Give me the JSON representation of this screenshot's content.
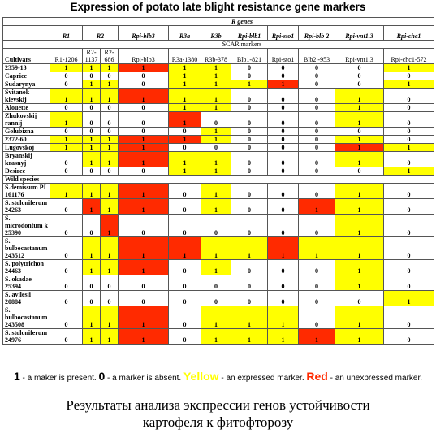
{
  "title": "Expression of potato late blight resistance gene markers",
  "table": {
    "group_header": "R genes",
    "genes": [
      "R1",
      "R2",
      "Rpi-blb3",
      "R3a",
      "R3b",
      "Rpi-blb1",
      "Rpi-sto1",
      "Rpi-blb 2",
      "Rpi-vnt1.3",
      "Rpi-chc1"
    ],
    "subheader": "SCAR markers",
    "corner": "Cultivars",
    "markers": [
      "R1-1206",
      "R2-1137",
      "R2-686",
      "Rpi-blb3",
      "R3a-1380",
      "R3b-378",
      "Blb1-821",
      "Rpi-sto1",
      "Blb2 -953",
      "Rpi-vnt1.3",
      "Rpi-chc1-572"
    ],
    "cultivars": [
      {
        "name": "2359-13",
        "values": [
          1,
          1,
          1,
          1,
          1,
          1,
          0,
          0,
          0,
          0,
          1
        ],
        "marks": [
          "y",
          "y",
          "y",
          "r",
          "y",
          "y",
          "n",
          "n",
          "n",
          "n",
          "y"
        ]
      },
      {
        "name": "Caprice",
        "values": [
          0,
          0,
          0,
          0,
          1,
          1,
          0,
          0,
          0,
          0,
          0
        ],
        "marks": [
          "n",
          "n",
          "n",
          "n",
          "y",
          "y",
          "n",
          "n",
          "n",
          "n",
          "n"
        ]
      },
      {
        "name": "Sudarynya",
        "values": [
          0,
          1,
          1,
          0,
          1,
          1,
          1,
          1,
          0,
          0,
          1
        ],
        "marks": [
          "n",
          "y",
          "y",
          "n",
          "y",
          "y",
          "y",
          "r",
          "n",
          "n",
          "y"
        ]
      },
      {
        "name": "Svitanok kievskij",
        "values": [
          1,
          1,
          1,
          1,
          1,
          1,
          0,
          0,
          0,
          1,
          0
        ],
        "marks": [
          "y",
          "y",
          "y",
          "r",
          "y",
          "y",
          "n",
          "n",
          "n",
          "y",
          "n"
        ]
      },
      {
        "name": "Alouette",
        "values": [
          0,
          0,
          0,
          0,
          1,
          1,
          0,
          0,
          0,
          1,
          0
        ],
        "marks": [
          "n",
          "n",
          "n",
          "n",
          "y",
          "y",
          "n",
          "n",
          "n",
          "y",
          "n"
        ]
      },
      {
        "name": "Zhukovskij rannij",
        "values": [
          1,
          0,
          0,
          0,
          1,
          0,
          0,
          0,
          0,
          1,
          0
        ],
        "marks": [
          "y",
          "n",
          "n",
          "n",
          "r",
          "n",
          "n",
          "n",
          "n",
          "y",
          "n"
        ]
      },
      {
        "name": "Golubizna",
        "values": [
          0,
          0,
          0,
          0,
          0,
          1,
          0,
          0,
          0,
          0,
          0
        ],
        "marks": [
          "n",
          "n",
          "n",
          "n",
          "n",
          "y",
          "n",
          "n",
          "n",
          "n",
          "n"
        ]
      },
      {
        "name": "2372-60",
        "values": [
          1,
          1,
          1,
          1,
          1,
          1,
          0,
          0,
          0,
          1,
          0
        ],
        "marks": [
          "y",
          "y",
          "y",
          "r",
          "r",
          "y",
          "n",
          "n",
          "n",
          "y",
          "n"
        ]
      },
      {
        "name": "Lugovskoj",
        "values": [
          1,
          1,
          1,
          1,
          0,
          0,
          0,
          0,
          0,
          1,
          1
        ],
        "marks": [
          "y",
          "y",
          "y",
          "r",
          "n",
          "n",
          "n",
          "n",
          "n",
          "r",
          "y"
        ]
      },
      {
        "name": "Bryanskij krasnyj",
        "values": [
          0,
          1,
          1,
          1,
          1,
          1,
          0,
          0,
          0,
          1,
          0
        ],
        "marks": [
          "n",
          "y",
          "y",
          "r",
          "y",
          "y",
          "n",
          "n",
          "n",
          "y",
          "n"
        ]
      },
      {
        "name": "Desiree",
        "values": [
          0,
          0,
          0,
          0,
          1,
          1,
          0,
          0,
          0,
          0,
          1
        ],
        "marks": [
          "n",
          "n",
          "n",
          "n",
          "y",
          "y",
          "n",
          "n",
          "n",
          "n",
          "y"
        ]
      }
    ],
    "wild_header": "Wild species",
    "wild": [
      {
        "name": "S.demissum PI 161176",
        "values": [
          1,
          1,
          1,
          1,
          0,
          1,
          0,
          0,
          0,
          1,
          0
        ],
        "marks": [
          "y",
          "y",
          "y",
          "r",
          "n",
          "y",
          "n",
          "n",
          "n",
          "y",
          "n"
        ]
      },
      {
        "name": "S. stoloniferum 24263",
        "values": [
          0,
          1,
          1,
          1,
          0,
          1,
          0,
          0,
          1,
          1,
          0
        ],
        "marks": [
          "n",
          "r",
          "y",
          "r",
          "n",
          "y",
          "n",
          "n",
          "r",
          "y",
          "n"
        ]
      },
      {
        "name": "S. microdontum k 25390",
        "values": [
          0,
          0,
          1,
          0,
          0,
          0,
          0,
          0,
          0,
          1,
          0
        ],
        "marks": [
          "n",
          "n",
          "r",
          "n",
          "n",
          "n",
          "n",
          "n",
          "n",
          "y",
          "n"
        ]
      },
      {
        "name": "S. bulbocastanum 243512",
        "values": [
          0,
          1,
          1,
          1,
          1,
          1,
          1,
          1,
          1,
          1,
          0
        ],
        "marks": [
          "n",
          "y",
          "y",
          "r",
          "r",
          "y",
          "y",
          "r",
          "y",
          "y",
          "n"
        ]
      },
      {
        "name": "S. polytrichon 24463",
        "values": [
          0,
          1,
          1,
          1,
          0,
          1,
          0,
          0,
          0,
          1,
          0
        ],
        "marks": [
          "n",
          "y",
          "y",
          "r",
          "n",
          "y",
          "n",
          "n",
          "n",
          "y",
          "n"
        ]
      },
      {
        "name": "S. okadae 25394",
        "values": [
          0,
          0,
          0,
          0,
          0,
          0,
          0,
          0,
          0,
          1,
          0
        ],
        "marks": [
          "n",
          "n",
          "n",
          "n",
          "n",
          "n",
          "n",
          "n",
          "n",
          "y",
          "n"
        ]
      },
      {
        "name": "S. avilesii 20884",
        "values": [
          0,
          0,
          0,
          0,
          0,
          0,
          0,
          0,
          0,
          0,
          1
        ],
        "marks": [
          "n",
          "n",
          "n",
          "n",
          "n",
          "n",
          "n",
          "n",
          "n",
          "n",
          "y"
        ]
      },
      {
        "name": "S. bulbocastanum 243508",
        "values": [
          0,
          1,
          1,
          1,
          0,
          1,
          1,
          1,
          0,
          1,
          0
        ],
        "marks": [
          "n",
          "y",
          "y",
          "r",
          "n",
          "y",
          "y",
          "y",
          "n",
          "y",
          "n"
        ]
      },
      {
        "name": "S. stoloniferum 24976",
        "values": [
          0,
          1,
          1,
          1,
          0,
          1,
          1,
          1,
          1,
          1,
          0
        ],
        "marks": [
          "n",
          "y",
          "y",
          "r",
          "n",
          "y",
          "y",
          "y",
          "r",
          "y",
          "n"
        ]
      }
    ]
  },
  "legend": [
    "1",
    " - a maker is present. ",
    "0",
    " - a marker is absent. ",
    "Yellow",
    " - an expressed marker. ",
    "Red",
    " - an unexpressed marker."
  ],
  "caption": [
    "Результаты анализа экспрессии генов устойчивости",
    "картофеля к фитофторозу"
  ]
}
